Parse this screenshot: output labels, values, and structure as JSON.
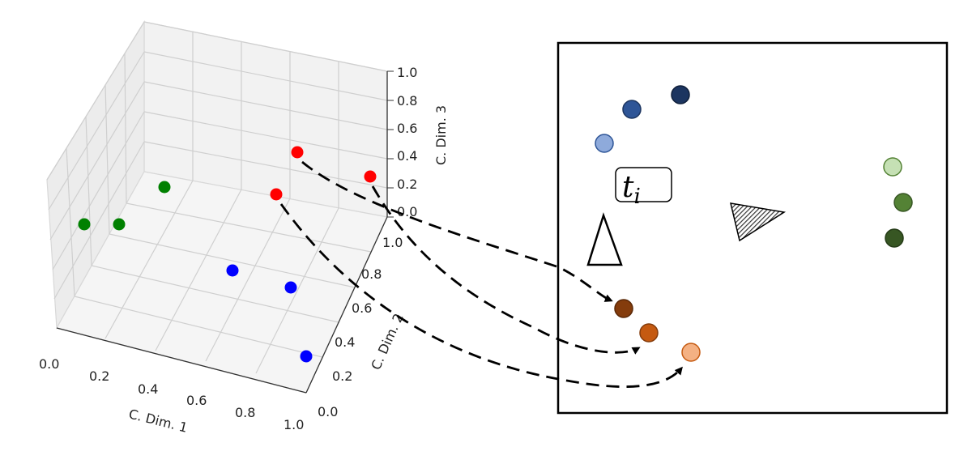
{
  "plot3d": {
    "xlabel": "C. Dim. 1",
    "ylabel": "C. Dim. 2",
    "zlabel": "C. Dim. 3",
    "x_ticks": [
      "0.0",
      "0.2",
      "0.4",
      "0.6",
      "0.8",
      "1.0"
    ],
    "y_ticks": [
      "0.0",
      "0.2",
      "0.4",
      "0.6",
      "0.8",
      "1.0"
    ],
    "z_ticks": [
      "0.0",
      "0.2",
      "0.4",
      "0.6",
      "0.8",
      "1.0"
    ],
    "colors": {
      "green": "#008000",
      "red": "#ff0000",
      "blue": "#0000ff"
    }
  },
  "panel": {
    "label_base": "t",
    "label_sub": "i",
    "colors": {
      "blue_dark": "#1c3560",
      "blue_mid": "#2e5597",
      "blue_light": "#8eaadb",
      "green_light": "#c5e0b4",
      "green_mid": "#548235",
      "green_dark": "#375623",
      "orange_dark": "#843c0c",
      "orange_mid": "#c55a11",
      "orange_light": "#f4b183"
    }
  }
}
